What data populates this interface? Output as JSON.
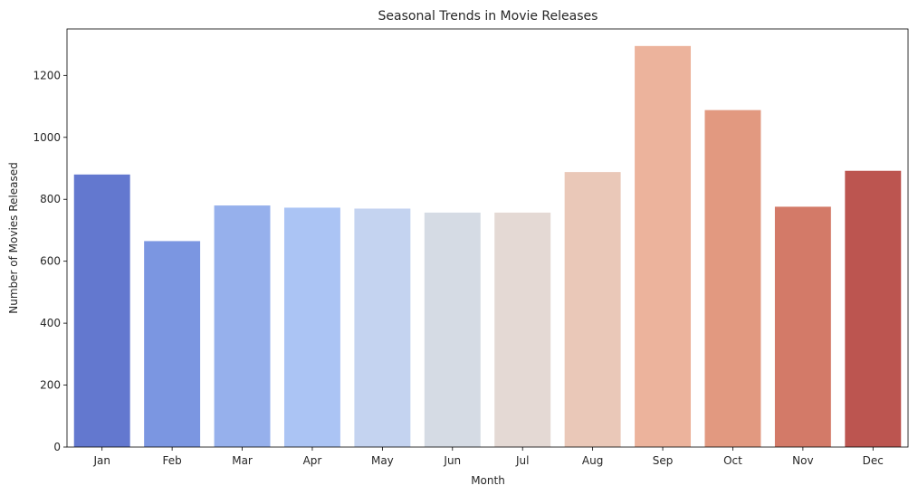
{
  "chart_data": {
    "type": "bar",
    "title": "Seasonal Trends in Movie Releases",
    "xlabel": "Month",
    "ylabel": "Number of Movies Released",
    "categories": [
      "Jan",
      "Feb",
      "Mar",
      "Apr",
      "May",
      "Jun",
      "Jul",
      "Aug",
      "Sep",
      "Oct",
      "Nov",
      "Dec"
    ],
    "values": [
      880,
      665,
      780,
      773,
      770,
      757,
      757,
      888,
      1295,
      1088,
      776,
      892
    ],
    "colors": [
      "#6378cf",
      "#7b96e1",
      "#96b0ec",
      "#abc4f4",
      "#c4d3f0",
      "#d5dbe4",
      "#e4d9d4",
      "#eac8b8",
      "#ecb39c",
      "#e29980",
      "#d37a68",
      "#bc5550"
    ],
    "ylim": [
      0,
      1350
    ],
    "yticks": [
      0,
      200,
      400,
      600,
      800,
      1000,
      1200
    ],
    "grid": false,
    "legend": "none"
  }
}
